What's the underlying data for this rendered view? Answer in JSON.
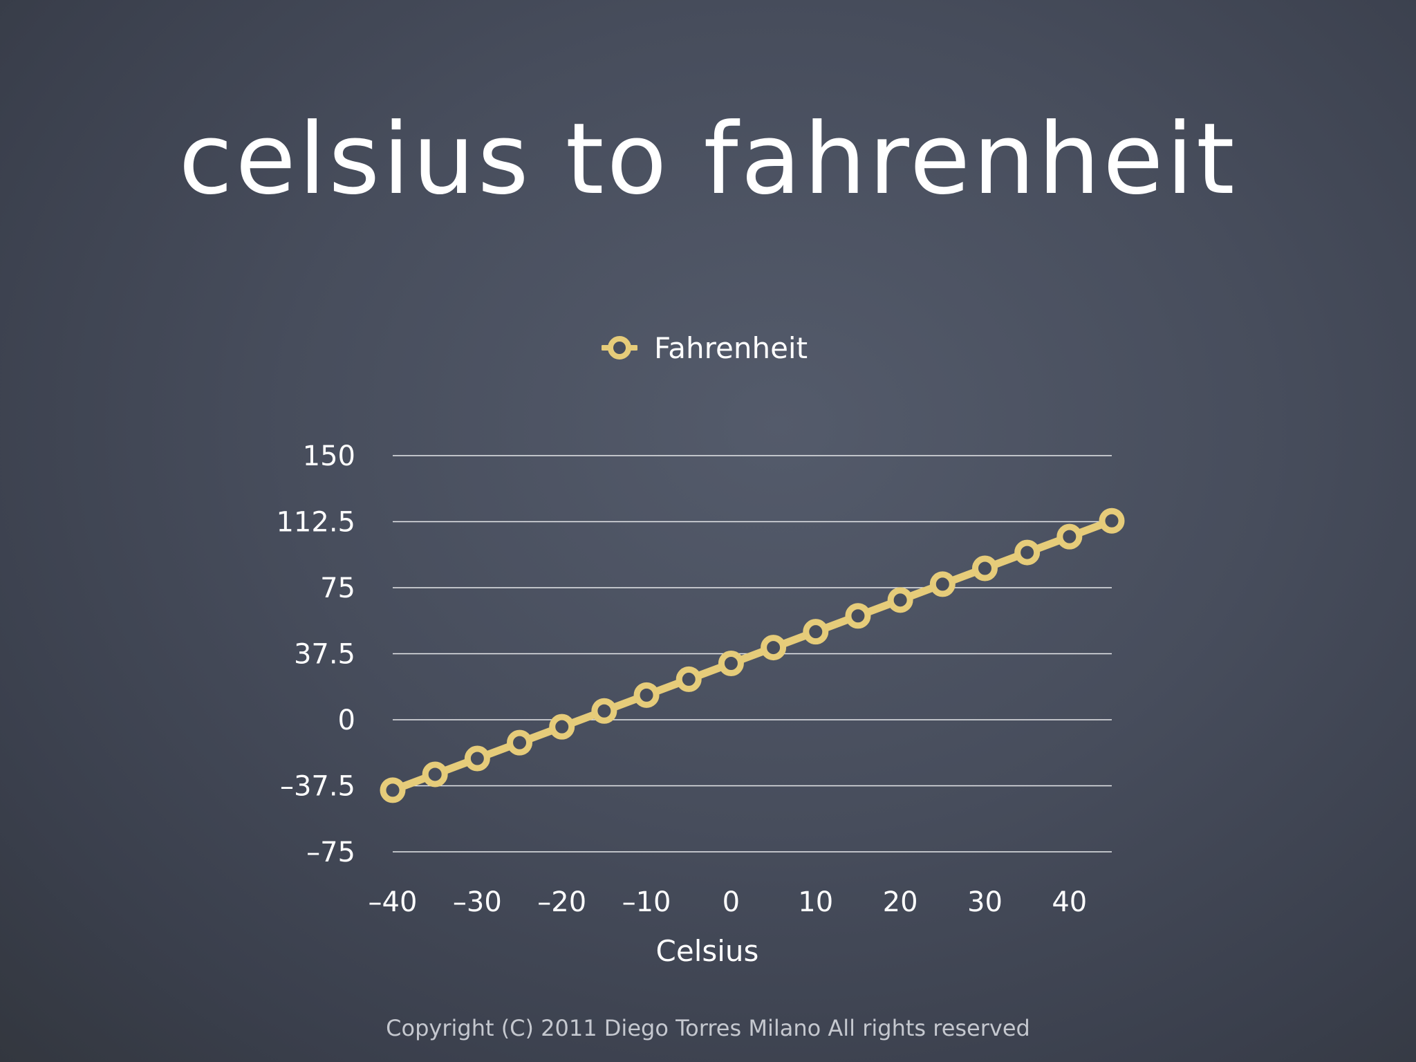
{
  "slide": {
    "title": "celsius to fahrenheit",
    "copyright": "Copyright (C) 2011  Diego Torres Milano  All rights reserved"
  },
  "legend": {
    "label": "Fahrenheit",
    "position": "top-center"
  },
  "colors": {
    "series": "#e6cc7a",
    "grid": "#e8e9ec",
    "text": "#ffffff",
    "background": "#474d5c"
  },
  "chart_data": {
    "type": "line",
    "title": "",
    "xlabel": "Celsius",
    "ylabel": "",
    "xlim": [
      -40,
      45
    ],
    "ylim": [
      -75,
      150
    ],
    "x_ticks": [
      -40,
      -30,
      -20,
      -10,
      0,
      10,
      20,
      30,
      40
    ],
    "x_tick_labels": [
      "-40",
      "-30",
      "-20",
      "-10",
      "0",
      "10",
      "20",
      "30",
      "40"
    ],
    "y_ticks": [
      -75,
      -37.5,
      0,
      37.5,
      75,
      112.5,
      150
    ],
    "y_tick_labels": [
      "-75",
      "-37.5",
      "0",
      "37.5",
      "75",
      "112.5",
      "150"
    ],
    "grid": "horizontal",
    "x": [
      -40,
      -35,
      -30,
      -25,
      -20,
      -15,
      -10,
      -5,
      0,
      5,
      10,
      15,
      20,
      25,
      30,
      35,
      40,
      45
    ],
    "series": [
      {
        "name": "Fahrenheit",
        "values": [
          -40,
          -31,
          -22,
          -13,
          -4,
          5,
          14,
          23,
          32,
          41,
          50,
          59,
          68,
          77,
          86,
          95,
          104,
          113
        ]
      }
    ]
  }
}
